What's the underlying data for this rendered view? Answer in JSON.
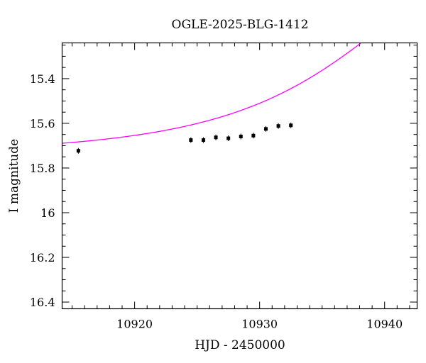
{
  "chart_data": {
    "type": "scatter",
    "title": "OGLE-2025-BLG-1412",
    "xlabel": "HJD - 2450000",
    "ylabel": "I magnitude",
    "xlim": [
      10914.2,
      10942.6
    ],
    "ylim": [
      16.43,
      15.24
    ],
    "y_inverted": true,
    "grid": false,
    "x_ticks": [
      {
        "value": 10920,
        "label": "10920"
      },
      {
        "value": 10930,
        "label": "10930"
      },
      {
        "value": 10940,
        "label": "10940"
      }
    ],
    "y_ticks": [
      {
        "value": 15.4,
        "label": "15.4"
      },
      {
        "value": 15.6,
        "label": "15.6"
      },
      {
        "value": 15.8,
        "label": "15.8"
      },
      {
        "value": 16.0,
        "label": "16"
      },
      {
        "value": 16.2,
        "label": "16.2"
      },
      {
        "value": 16.4,
        "label": "16.4"
      }
    ],
    "x_minor_step": 1,
    "y_minor_step": 0.05,
    "series": [
      {
        "type": "scatter",
        "color": "#000000",
        "points": [
          {
            "x": 10915.5,
            "y": 15.723
          },
          {
            "x": 10924.5,
            "y": 15.675
          },
          {
            "x": 10925.5,
            "y": 15.675
          },
          {
            "x": 10926.5,
            "y": 15.663
          },
          {
            "x": 10927.5,
            "y": 15.667
          },
          {
            "x": 10928.5,
            "y": 15.659
          },
          {
            "x": 10929.5,
            "y": 15.655
          },
          {
            "x": 10930.5,
            "y": 15.625
          },
          {
            "x": 10931.5,
            "y": 15.612
          },
          {
            "x": 10932.5,
            "y": 15.609
          }
        ]
      },
      {
        "type": "line",
        "color": "#ff00ff",
        "model": {
          "t0": 10945.5,
          "tE": 15.0,
          "u0": 0.58,
          "baseline_mag": 15.74
        }
      }
    ]
  }
}
